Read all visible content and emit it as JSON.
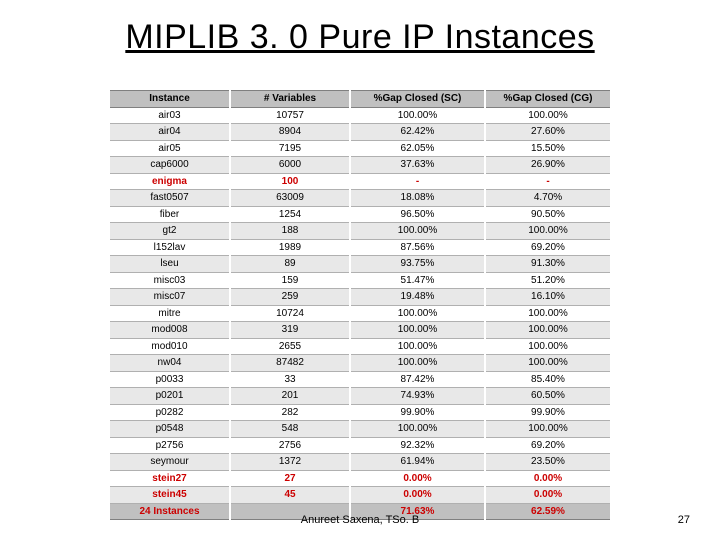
{
  "title": "MIPLIB 3. 0 Pure IP Instances",
  "table": {
    "type": "table",
    "columns": [
      "Instance",
      "# Variables",
      "%Gap Closed (SC)",
      "%Gap Closed (CG)"
    ],
    "rows": [
      {
        "cells": [
          "air03",
          "10757",
          "100.00%",
          "100.00%"
        ],
        "highlight": false
      },
      {
        "cells": [
          "air04",
          "8904",
          "62.42%",
          "27.60%"
        ],
        "highlight": false
      },
      {
        "cells": [
          "air05",
          "7195",
          "62.05%",
          "15.50%"
        ],
        "highlight": false
      },
      {
        "cells": [
          "cap6000",
          "6000",
          "37.63%",
          "26.90%"
        ],
        "highlight": false
      },
      {
        "cells": [
          "enigma",
          "100",
          "-",
          "-"
        ],
        "highlight": true
      },
      {
        "cells": [
          "fast0507",
          "63009",
          "18.08%",
          "4.70%"
        ],
        "highlight": false
      },
      {
        "cells": [
          "fiber",
          "1254",
          "96.50%",
          "90.50%"
        ],
        "highlight": false
      },
      {
        "cells": [
          "gt2",
          "188",
          "100.00%",
          "100.00%"
        ],
        "highlight": false
      },
      {
        "cells": [
          "l152lav",
          "1989",
          "87.56%",
          "69.20%"
        ],
        "highlight": false
      },
      {
        "cells": [
          "lseu",
          "89",
          "93.75%",
          "91.30%"
        ],
        "highlight": false
      },
      {
        "cells": [
          "misc03",
          "159",
          "51.47%",
          "51.20%"
        ],
        "highlight": false
      },
      {
        "cells": [
          "misc07",
          "259",
          "19.48%",
          "16.10%"
        ],
        "highlight": false
      },
      {
        "cells": [
          "mitre",
          "10724",
          "100.00%",
          "100.00%"
        ],
        "highlight": false
      },
      {
        "cells": [
          "mod008",
          "319",
          "100.00%",
          "100.00%"
        ],
        "highlight": false
      },
      {
        "cells": [
          "mod010",
          "2655",
          "100.00%",
          "100.00%"
        ],
        "highlight": false
      },
      {
        "cells": [
          "nw04",
          "87482",
          "100.00%",
          "100.00%"
        ],
        "highlight": false
      },
      {
        "cells": [
          "p0033",
          "33",
          "87.42%",
          "85.40%"
        ],
        "highlight": false
      },
      {
        "cells": [
          "p0201",
          "201",
          "74.93%",
          "60.50%"
        ],
        "highlight": false
      },
      {
        "cells": [
          "p0282",
          "282",
          "99.90%",
          "99.90%"
        ],
        "highlight": false
      },
      {
        "cells": [
          "p0548",
          "548",
          "100.00%",
          "100.00%"
        ],
        "highlight": false
      },
      {
        "cells": [
          "p2756",
          "2756",
          "92.32%",
          "69.20%"
        ],
        "highlight": false
      },
      {
        "cells": [
          "seymour",
          "1372",
          "61.94%",
          "23.50%"
        ],
        "highlight": false
      },
      {
        "cells": [
          "stein27",
          "27",
          "0.00%",
          "0.00%"
        ],
        "highlight": true
      },
      {
        "cells": [
          "stein45",
          "45",
          "0.00%",
          "0.00%"
        ],
        "highlight": true
      }
    ],
    "footer": [
      "24 Instances",
      "",
      "71.63%",
      "62.59%"
    ],
    "header_bg": "#c0c0c0",
    "row_alt_bg": "#e8e8e8",
    "highlight_color": "#cc0000",
    "font_size_pt": 10
  },
  "footer": {
    "author": "Anureet Saxena, TSo. B",
    "page": "27"
  }
}
